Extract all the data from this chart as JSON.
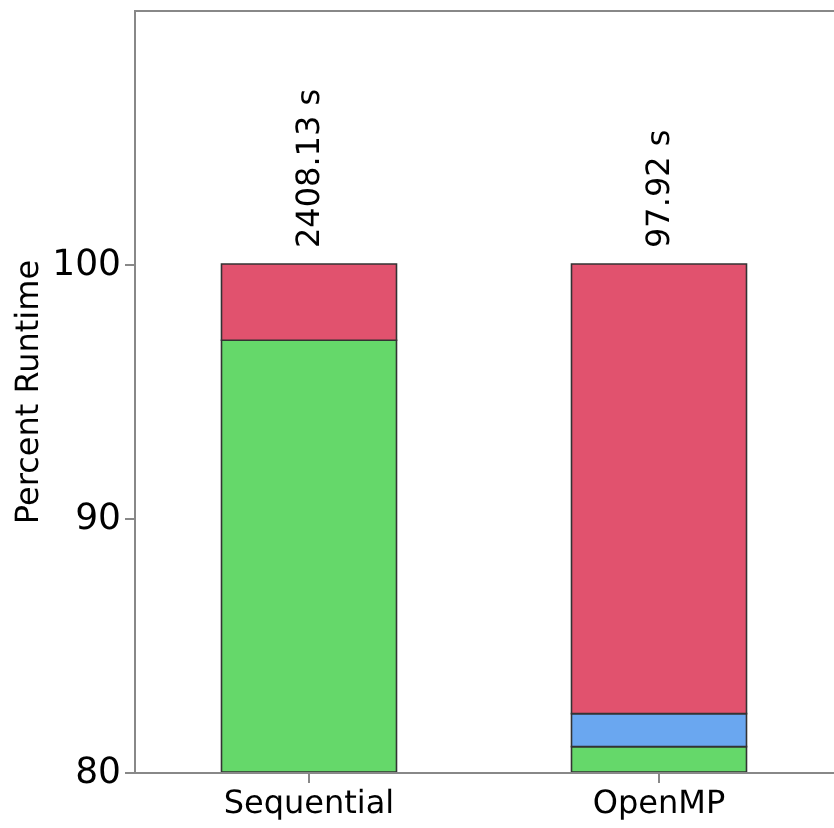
{
  "chart_data": {
    "type": "bar",
    "ylabel": "Percent Runtime",
    "categories": [
      "Sequential",
      "OpenMP"
    ],
    "series": [
      {
        "color": "#65d86a",
        "base": [
          80,
          80
        ],
        "values": [
          17.0,
          1.0
        ]
      },
      {
        "color": "#6aa7f0",
        "base": [
          null,
          81.0
        ],
        "values": [
          null,
          1.3
        ]
      },
      {
        "color": "#e1526e",
        "base": [
          97.0,
          82.3
        ],
        "values": [
          3.0,
          17.7
        ]
      }
    ],
    "annotations": [
      {
        "text": "2408.13 s",
        "x": "Sequential",
        "y": 100
      },
      {
        "text": "97.92 s",
        "x": "OpenMP",
        "y": 100
      }
    ],
    "ylim": [
      80,
      110
    ],
    "yticks": [
      80,
      90,
      100
    ],
    "grid": false,
    "legend": false
  }
}
